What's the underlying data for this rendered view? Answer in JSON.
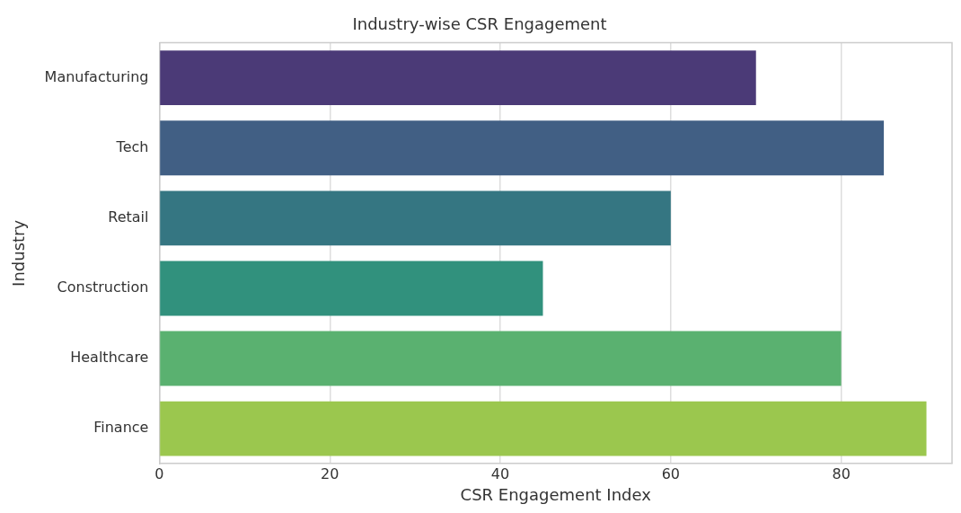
{
  "chart_data": {
    "type": "bar",
    "orientation": "horizontal",
    "title": "Industry-wise CSR Engagement",
    "xlabel": "CSR Engagement Index",
    "ylabel": "Industry",
    "categories": [
      "Manufacturing",
      "Tech",
      "Retail",
      "Construction",
      "Healthcare",
      "Finance"
    ],
    "values": [
      70,
      85,
      60,
      45,
      80,
      90
    ],
    "colors": [
      "#4b3a77",
      "#415f84",
      "#357682",
      "#31917d",
      "#5ab170",
      "#9bc74e"
    ],
    "xlim": [
      0,
      93
    ],
    "xticks": [
      0,
      20,
      40,
      60,
      80
    ],
    "grid": "x",
    "legend": false
  }
}
